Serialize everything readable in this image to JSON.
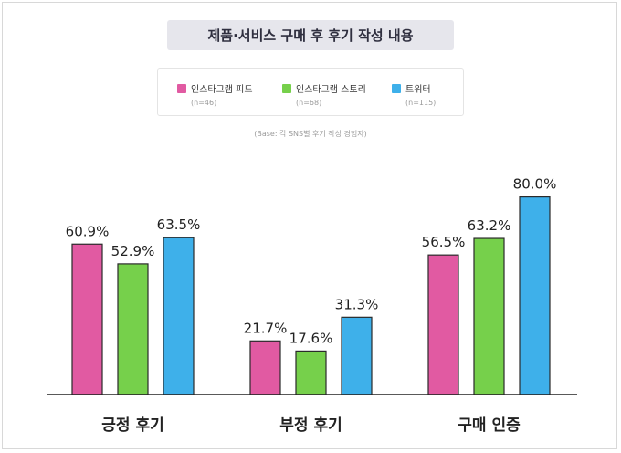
{
  "title": "제품·서비스 구매 후 후기 작성 내용",
  "base_note": "(Base: 각 SNS별 후기 작성 경험자)",
  "legend": [
    {
      "label": "인스타그램 피드",
      "n": "(n=46)",
      "color": "#e15aa2"
    },
    {
      "label": "인스타그램 스토리",
      "n": "(n=68)",
      "color": "#76d04b"
    },
    {
      "label": "트위터",
      "n": "(n=115)",
      "color": "#3eb0ea"
    }
  ],
  "chart_data": {
    "type": "bar",
    "categories": [
      "긍정 후기",
      "부정 후기",
      "구매 인증"
    ],
    "series": [
      {
        "name": "인스타그램 피드",
        "values": [
          60.9,
          21.7,
          56.5
        ],
        "labels": [
          "60.9%",
          "21.7%",
          "56.5%"
        ],
        "color": "#e15aa2"
      },
      {
        "name": "인스타그램 스토리",
        "values": [
          52.9,
          17.6,
          63.2
        ],
        "labels": [
          "52.9%",
          "17.6%",
          "63.2%"
        ],
        "color": "#76d04b"
      },
      {
        "name": "트위터",
        "values": [
          63.5,
          31.3,
          80.0
        ],
        "labels": [
          "63.5%",
          "31.3%",
          "80.0%"
        ],
        "color": "#3eb0ea"
      }
    ],
    "ylim": [
      0,
      100
    ],
    "grid": false,
    "legend_position": "top"
  }
}
